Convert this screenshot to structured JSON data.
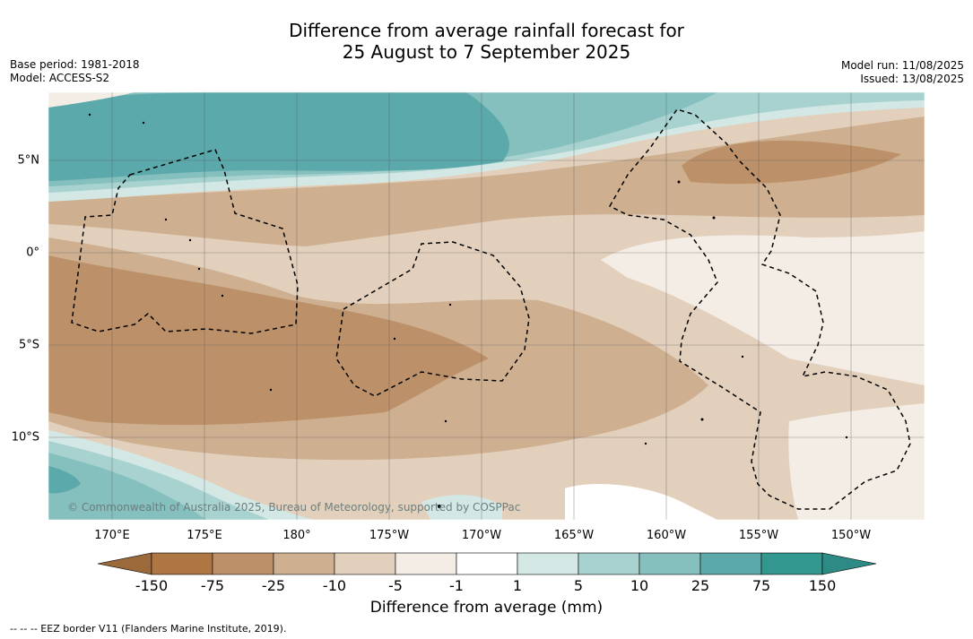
{
  "title": {
    "line1": "Difference from average rainfall forecast for",
    "line2": "25 August to 7 September 2025"
  },
  "meta_left": {
    "base_period": "Base period: 1981-2018",
    "model": "Model: ACCESS-S2"
  },
  "meta_right": {
    "model_run": "Model run: 11/08/2025",
    "issued": "Issued: 13/08/2025"
  },
  "map": {
    "lon_labels": [
      "170°E",
      "175°E",
      "180°",
      "175°W",
      "170°W",
      "165°W",
      "160°W",
      "155°W",
      "150°W"
    ],
    "lat_labels": [
      "5°N",
      "0°",
      "5°S",
      "10°S"
    ],
    "copyright": "© Commonwealth of Australia 2025, Bureau of Meteorology, supported by COSPPac"
  },
  "colorbar": {
    "ticks": [
      "-150",
      "-75",
      "-25",
      "-10",
      "-5",
      "-1",
      "1",
      "5",
      "10",
      "25",
      "75",
      "150"
    ],
    "label": "Difference from average (mm)",
    "colors": [
      "#ad7642",
      "#bc9169",
      "#ceb091",
      "#e2d0bd",
      "#f4ede6",
      "#ffffff",
      "#d3e8e5",
      "#a7d2cf",
      "#85bfbe",
      "#5ba9aa",
      "#32978f"
    ],
    "under_color": "#9c6a3a",
    "over_color": "#2d8a84"
  },
  "footnote": "--  --  -- EEZ border V11 (Flanders Marine Institute, 2019)."
}
